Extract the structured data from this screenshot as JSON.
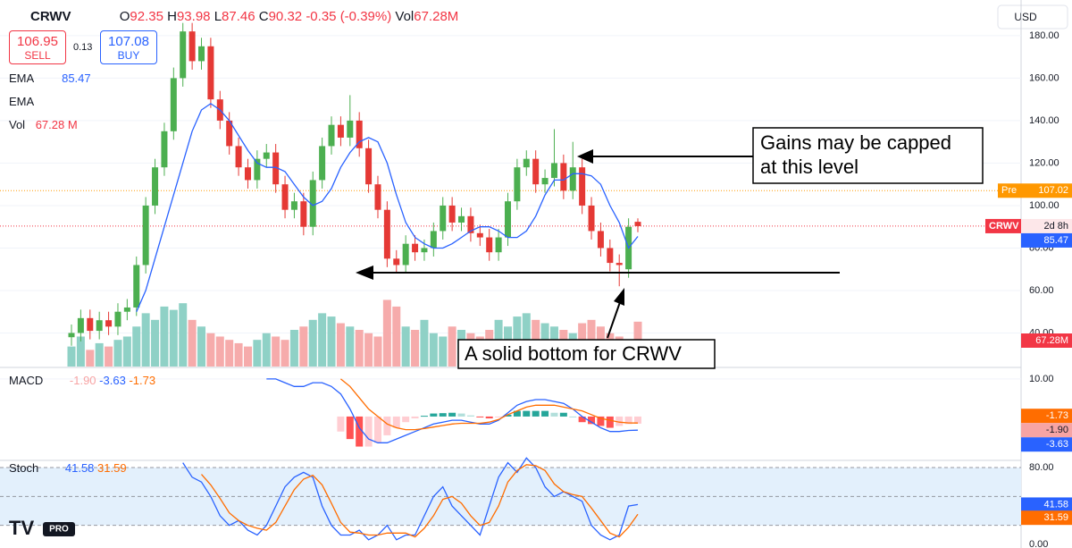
{
  "chart_data": {
    "type": "candlestick",
    "symbol": "CRWV",
    "currency": "USD",
    "header": {
      "open_label": "O",
      "high_label": "H",
      "low_label": "L",
      "close_label": "C",
      "change": -0.35,
      "change_pct": "(-0.39%)",
      "vol_label": "Vol",
      "vol_text": "67.28M"
    },
    "sell": {
      "price": 106.95,
      "label": "SELL"
    },
    "spread": 0.13,
    "buy": {
      "price": 107.08,
      "label": "BUY"
    },
    "legend": {
      "ema1": "EMA",
      "ema2": "EMA",
      "vol": "Vol",
      "vol_text": "67.28 M"
    },
    "candles": {
      "up_color": "#4caf50",
      "down_color": "#e53935",
      "open": [
        38,
        40,
        47,
        41,
        46,
        43,
        50,
        52,
        72,
        100,
        118,
        135,
        160,
        182,
        168,
        175,
        150,
        140,
        128,
        118,
        112,
        122,
        125,
        110,
        98,
        102,
        90,
        112,
        128,
        138,
        132,
        140,
        127,
        110,
        98,
        75,
        72,
        82,
        78,
        80,
        88,
        100,
        92,
        95,
        87,
        85,
        78,
        85,
        102,
        118,
        122,
        110,
        113,
        120,
        107,
        118,
        100,
        88,
        80,
        73,
        70,
        92.35
      ],
      "high": [
        44,
        51,
        51,
        50,
        50,
        54,
        56,
        76,
        104,
        122,
        139,
        165,
        186,
        186,
        179,
        179,
        154,
        144,
        132,
        122,
        126,
        129,
        129,
        114,
        106,
        106,
        116,
        132,
        142,
        142,
        152,
        144,
        131,
        114,
        102,
        79,
        86,
        86,
        84,
        92,
        104,
        104,
        99,
        99,
        91,
        89,
        89,
        106,
        122,
        126,
        126,
        117,
        136,
        124,
        130,
        122,
        104,
        92,
        84,
        77,
        94,
        93.98
      ],
      "low": [
        34,
        36,
        37,
        37,
        39,
        39,
        46,
        48,
        68,
        96,
        114,
        131,
        156,
        164,
        164,
        146,
        136,
        124,
        114,
        108,
        108,
        118,
        106,
        94,
        94,
        86,
        86,
        108,
        124,
        128,
        128,
        123,
        106,
        94,
        71,
        68,
        68,
        74,
        74,
        76,
        84,
        88,
        88,
        83,
        81,
        74,
        74,
        81,
        98,
        114,
        106,
        106,
        109,
        103,
        103,
        96,
        84,
        76,
        69,
        62,
        66,
        87.46
      ],
      "close": [
        40,
        47,
        41,
        46,
        43,
        50,
        52,
        72,
        100,
        118,
        135,
        160,
        182,
        168,
        175,
        150,
        140,
        128,
        118,
        112,
        122,
        125,
        110,
        98,
        102,
        90,
        112,
        128,
        138,
        132,
        140,
        127,
        110,
        98,
        75,
        72,
        82,
        78,
        80,
        88,
        100,
        92,
        95,
        87,
        85,
        78,
        85,
        102,
        118,
        122,
        110,
        113,
        120,
        107,
        118,
        100,
        88,
        80,
        73,
        72,
        90,
        90.32
      ]
    },
    "ylim": [
      24.2,
      196.8
    ],
    "yticks": [
      {
        "value": 180,
        "label": "180.00"
      },
      {
        "value": 160,
        "label": "160.00"
      },
      {
        "value": 140,
        "label": "140.00"
      },
      {
        "value": 120,
        "label": "120.00"
      },
      {
        "value": 100,
        "label": "100.00"
      },
      {
        "value": 80,
        "label": "80.00"
      },
      {
        "value": 60,
        "label": "60.00"
      },
      {
        "value": 40,
        "label": "40.00"
      }
    ],
    "ema": {
      "color": "#2962ff",
      "values": [
        null,
        null,
        null,
        null,
        null,
        null,
        null,
        50,
        60,
        75,
        90,
        105,
        120,
        135,
        145,
        148,
        145,
        140,
        133,
        126,
        120,
        118,
        118,
        116,
        110,
        104,
        100,
        102,
        108,
        118,
        125,
        130,
        132,
        130,
        120,
        105,
        92,
        85,
        82,
        80,
        80,
        82,
        85,
        88,
        90,
        90,
        88,
        85,
        85,
        88,
        95,
        105,
        112,
        112,
        115,
        115,
        114,
        110,
        100,
        92,
        80,
        85.47
      ]
    },
    "volume": {
      "up_color": "#8fd1c6",
      "down_color": "#f6abab",
      "ylim": [
        0,
        550
      ],
      "values": [
        30,
        45,
        25,
        35,
        30,
        40,
        45,
        60,
        80,
        70,
        90,
        85,
        95,
        70,
        60,
        50,
        45,
        40,
        35,
        30,
        40,
        50,
        45,
        40,
        55,
        60,
        70,
        80,
        75,
        65,
        60,
        55,
        50,
        45,
        100,
        90,
        60,
        55,
        70,
        50,
        45,
        60,
        55,
        50,
        45,
        55,
        70,
        60,
        75,
        80,
        70,
        65,
        60,
        55,
        50,
        65,
        70,
        60,
        50,
        45,
        40,
        67.28
      ]
    },
    "pre": {
      "label": "Pre",
      "value": 107.02
    },
    "price_badge": {
      "label": "CRWV",
      "countdown": "2d 8h"
    },
    "macd": {
      "label": "MACD",
      "ylim": [
        -9.3,
        12.6
      ],
      "yticks": [
        {
          "value": 10,
          "label": "10.00"
        }
      ],
      "hist_last_label": "-1.90",
      "macd": {
        "color": "#2962ff",
        "values": [
          null,
          null,
          null,
          null,
          null,
          null,
          null,
          null,
          null,
          null,
          null,
          null,
          null,
          null,
          null,
          null,
          null,
          null,
          null,
          null,
          null,
          10,
          10,
          9,
          8,
          8,
          9,
          9,
          8,
          6,
          2,
          -3,
          -6,
          -7,
          -7,
          -6,
          -5,
          -4,
          -3,
          -2,
          -1.5,
          -1,
          -1,
          -1.5,
          -2,
          -2,
          -1,
          1,
          3,
          4,
          4.5,
          4.5,
          4,
          3.5,
          2,
          0,
          -1.5,
          -3,
          -4,
          -4,
          -3.7,
          -3.63
        ]
      },
      "signal": {
        "color": "#ff6d00",
        "values": [
          null,
          null,
          null,
          null,
          null,
          null,
          null,
          null,
          null,
          null,
          null,
          null,
          null,
          null,
          null,
          null,
          null,
          null,
          null,
          null,
          null,
          null,
          null,
          null,
          null,
          null,
          null,
          null,
          null,
          10,
          8,
          5,
          2,
          0,
          -2,
          -3,
          -3.5,
          -3.5,
          -3.2,
          -2.8,
          -2.4,
          -2,
          -1.8,
          -1.8,
          -1.8,
          -1.5,
          -0.8,
          0.5,
          1.5,
          2.5,
          3,
          3,
          3,
          2.5,
          2,
          1.5,
          0.5,
          -0.5,
          -1,
          -1.5,
          -1.7,
          -1.73
        ]
      },
      "histogram": {
        "values": [
          null,
          null,
          null,
          null,
          null,
          null,
          null,
          null,
          null,
          null,
          null,
          null,
          null,
          null,
          null,
          null,
          null,
          null,
          null,
          null,
          null,
          null,
          null,
          null,
          null,
          null,
          null,
          null,
          null,
          -4,
          -6,
          -8,
          -8,
          -7,
          -5,
          -3,
          -1.5,
          -0.5,
          0.2,
          0.8,
          0.9,
          1,
          0.8,
          0.3,
          -0.2,
          -0.5,
          -0.2,
          0.5,
          1.5,
          1.5,
          1.5,
          1.5,
          1,
          1,
          0,
          -1.5,
          -2,
          -2.5,
          -3,
          -2.5,
          -2,
          -1.9
        ]
      }
    },
    "stoch": {
      "label": "Stoch",
      "ylim": [
        -3.5,
        85.6
      ],
      "yticks": [
        {
          "value": 80,
          "label": "80.00"
        },
        {
          "value": 0,
          "label": "0.00"
        }
      ],
      "band": [
        20,
        80
      ],
      "mid": 50,
      "k": {
        "color": "#2962ff",
        "values": [
          null,
          null,
          null,
          null,
          null,
          null,
          null,
          null,
          null,
          null,
          null,
          null,
          85,
          70,
          65,
          50,
          30,
          20,
          25,
          15,
          10,
          20,
          40,
          60,
          70,
          75,
          70,
          40,
          20,
          10,
          10,
          15,
          5,
          10,
          20,
          5,
          10,
          10,
          30,
          50,
          60,
          40,
          30,
          20,
          10,
          40,
          70,
          85,
          75,
          90,
          80,
          60,
          50,
          55,
          50,
          45,
          20,
          10,
          5,
          10,
          40,
          41.58
        ]
      },
      "d": {
        "color": "#ff6d00",
        "values": [
          null,
          null,
          null,
          null,
          null,
          null,
          null,
          null,
          null,
          null,
          null,
          null,
          null,
          null,
          73,
          62,
          48,
          33,
          25,
          20,
          17,
          15,
          23,
          40,
          57,
          68,
          72,
          62,
          43,
          23,
          13,
          12,
          10,
          10,
          12,
          12,
          12,
          8,
          17,
          30,
          47,
          50,
          43,
          30,
          20,
          23,
          40,
          65,
          77,
          83,
          82,
          77,
          63,
          55,
          52,
          50,
          38,
          25,
          12,
          8,
          18,
          31.59
        ]
      }
    },
    "annotations": {
      "cap": [
        "Gains may be capped",
        "at this level"
      ],
      "bottom": "A solid bottom for CRWV"
    },
    "logo": "PRO"
  }
}
